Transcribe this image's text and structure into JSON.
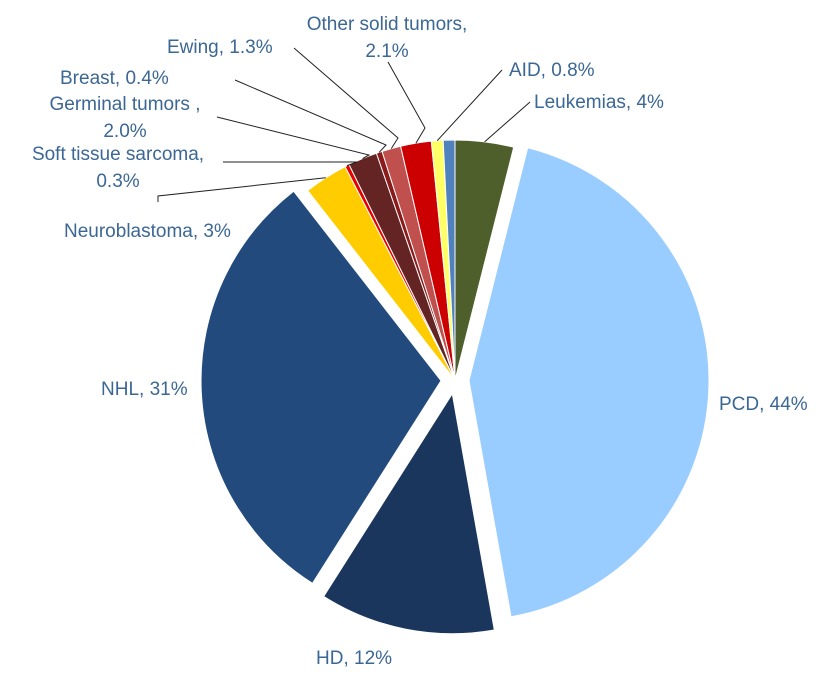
{
  "chart_data": {
    "type": "pie",
    "title": "",
    "start_angle_deg": 0,
    "direction": "clockwise",
    "slices": [
      {
        "name": "Leukemias",
        "value": 4,
        "label": "Leukemias, 4%",
        "color": "#4e5f2b",
        "exploded": false
      },
      {
        "name": "PCD",
        "value": 44,
        "label": "PCD, 44%",
        "color": "#99ccff",
        "exploded": true
      },
      {
        "name": "HD",
        "value": 12,
        "label": "HD, 12%",
        "color": "#1a365d",
        "exploded": true
      },
      {
        "name": "NHL",
        "value": 31,
        "label": "NHL, 31%",
        "color": "#224a7c",
        "exploded": true
      },
      {
        "name": "Neuroblastoma",
        "value": 3,
        "label": "Neuroblastoma, 3%",
        "color": "#ffcc00",
        "exploded": false
      },
      {
        "name": "Soft tissue sarcoma",
        "value": 0.3,
        "label_lines": [
          "Soft tissue sarcoma,",
          "0.3%"
        ],
        "color": "#e60000",
        "exploded": false
      },
      {
        "name": "Germinal tumors",
        "value": 2.0,
        "label_lines": [
          "Germinal tumors ,",
          "2.0%"
        ],
        "color": "#632423",
        "exploded": false
      },
      {
        "name": "Breast",
        "value": 0.4,
        "label": "Breast, 0.4%",
        "color": "#8b1a1a",
        "exploded": false
      },
      {
        "name": "Ewing",
        "value": 1.3,
        "label": "Ewing, 1.3%",
        "color": "#c0504d",
        "exploded": false
      },
      {
        "name": "Other solid tumors",
        "value": 2.1,
        "label_lines": [
          "Other solid tumors,",
          "2.1%"
        ],
        "color": "#cc0000",
        "exploded": false
      },
      {
        "name": "AID",
        "value": 0.8,
        "label": "AID, 0.8%",
        "color": "#ffff66",
        "exploded": false
      },
      {
        "name": "Unlabeled",
        "value": 0.8,
        "label": "",
        "color": "#4f81bd",
        "exploded": false
      }
    ]
  }
}
